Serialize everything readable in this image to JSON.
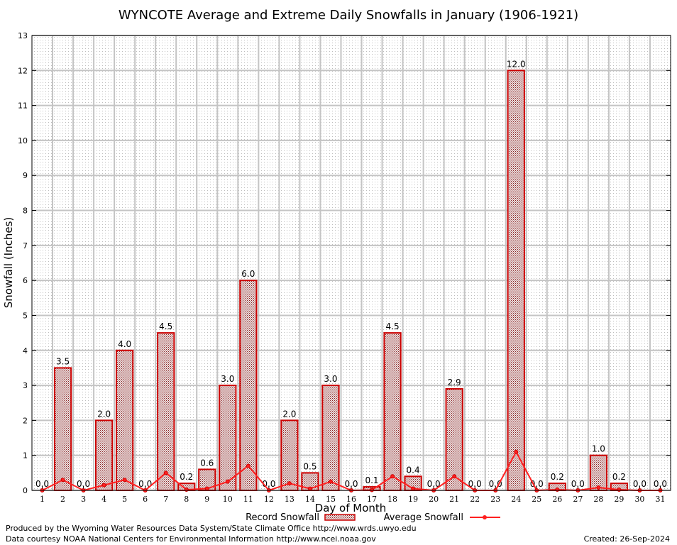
{
  "chart_data": {
    "type": "bar",
    "title": "WYNCOTE Average and Extreme Daily Snowfalls in January (1906-1921)",
    "xlabel": "Day of Month",
    "ylabel": "Snowfall (Inches)",
    "ylim": [
      0,
      13
    ],
    "yticks": [
      "0",
      "1",
      "2",
      "3",
      "4",
      "5",
      "6",
      "7",
      "8",
      "9",
      "10",
      "11",
      "12",
      "13"
    ],
    "categories": [
      "1",
      "2",
      "3",
      "4",
      "5",
      "6",
      "7",
      "8",
      "9",
      "10",
      "11",
      "12",
      "13",
      "14",
      "15",
      "16",
      "17",
      "18",
      "19",
      "20",
      "21",
      "22",
      "23",
      "24",
      "25",
      "26",
      "27",
      "28",
      "29",
      "30",
      "31"
    ],
    "series": [
      {
        "name": "Record Snowfall",
        "kind": "bar",
        "values": [
          0.0,
          3.5,
          0.0,
          2.0,
          4.0,
          0.0,
          4.5,
          0.2,
          0.6,
          3.0,
          6.0,
          0.0,
          2.0,
          0.5,
          3.0,
          0.0,
          0.1,
          4.5,
          0.4,
          0.0,
          2.9,
          0.0,
          0.0,
          12.0,
          0.0,
          0.2,
          0.0,
          1.0,
          0.2,
          0.0,
          0.0
        ],
        "labels": [
          "0.0",
          "3.5",
          "0.0",
          "2.0",
          "4.0",
          "0.0",
          "4.5",
          "0.2",
          "0.6",
          "3.0",
          "6.0",
          "0.0",
          "2.0",
          "0.5",
          "3.0",
          "0.0",
          "0.1",
          "4.5",
          "0.4",
          "0.0",
          "2.9",
          "0.0",
          "0.0",
          "12.0",
          "0.0",
          "0.2",
          "0.0",
          "1.0",
          "0.2",
          "0.0",
          "0.0"
        ]
      },
      {
        "name": "Average Snowfall",
        "kind": "line",
        "values": [
          0.0,
          0.3,
          0.0,
          0.15,
          0.3,
          0.0,
          0.5,
          0.02,
          0.05,
          0.25,
          0.7,
          0.0,
          0.2,
          0.05,
          0.25,
          0.0,
          0.01,
          0.4,
          0.05,
          0.0,
          0.4,
          0.0,
          0.0,
          1.1,
          0.0,
          0.02,
          0.0,
          0.08,
          0.02,
          0.0,
          0.0
        ]
      }
    ],
    "grid": true,
    "legend_position": "bottom-center",
    "colors": {
      "bar_stroke": "#cc0000",
      "bar_fill": "#b8888a",
      "line": "#ff2020",
      "grid": "#c8c8c8"
    }
  },
  "footer": {
    "credit_line1": "Produced by the Wyoming Water Resources Data System/State Climate Office http://www.wrds.uwyo.edu",
    "credit_line2": "Data courtesy NOAA National Centers for Environmental Information http://www.ncei.noaa.gov",
    "created": "Created:  26-Sep-2024"
  }
}
